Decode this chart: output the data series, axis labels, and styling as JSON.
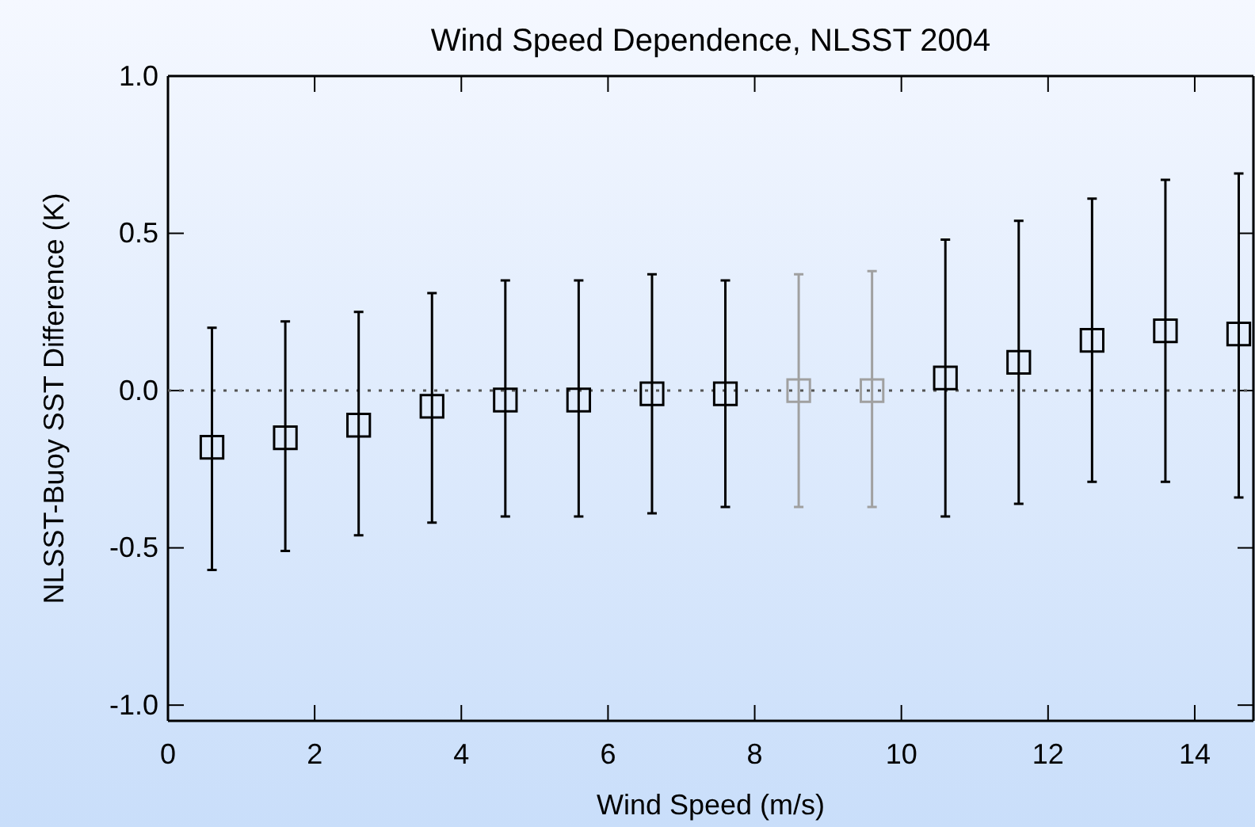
{
  "chart_data": {
    "type": "scatter",
    "title": "Wind Speed Dependence, NLSST 2004",
    "xlabel": "Wind Speed (m/s)",
    "ylabel": "NLSST-Buoy SST Difference (K)",
    "x": [
      0.6,
      1.6,
      2.6,
      3.6,
      4.6,
      5.6,
      6.6,
      7.6,
      8.6,
      9.6,
      10.6,
      11.6,
      12.6,
      13.6,
      14.6
    ],
    "values": [
      -0.18,
      -0.15,
      -0.11,
      -0.05,
      -0.03,
      -0.03,
      -0.01,
      -0.01,
      0.0,
      0.0,
      0.04,
      0.09,
      0.16,
      0.19,
      0.18
    ],
    "errors": [
      [
        -0.57,
        0.2
      ],
      [
        -0.51,
        0.22
      ],
      [
        -0.46,
        0.25
      ],
      [
        -0.42,
        0.31
      ],
      [
        -0.4,
        0.35
      ],
      [
        -0.4,
        0.35
      ],
      [
        -0.39,
        0.37
      ],
      [
        -0.37,
        0.35
      ],
      [
        -0.37,
        0.37
      ],
      [
        -0.37,
        0.38
      ],
      [
        -0.4,
        0.48
      ],
      [
        -0.36,
        0.54
      ],
      [
        -0.29,
        0.61
      ],
      [
        -0.29,
        0.67
      ],
      [
        -0.34,
        0.69
      ]
    ],
    "colors": [
      "#000000",
      "#000000",
      "#000000",
      "#000000",
      "#000000",
      "#000000",
      "#000000",
      "#000000",
      "#a0a0a0",
      "#a0a0a0",
      "#000000",
      "#000000",
      "#000000",
      "#000000",
      "#000000"
    ],
    "marker": "square",
    "xlim": [
      0,
      14.8
    ],
    "xticks": [
      0,
      2,
      4,
      6,
      8,
      10,
      12,
      14
    ],
    "ylim": [
      -1.05,
      1.0
    ],
    "yticks": [
      {
        "value": -1.0,
        "label": "-1.0"
      },
      {
        "value": -0.5,
        "label": "-0.5"
      },
      {
        "value": 0,
        "label": "0.0"
      },
      {
        "value": 0.5,
        "label": "0.5"
      },
      {
        "value": 1.0,
        "label": "1.0"
      }
    ],
    "ref_lines": [
      {
        "axis": "y",
        "value": 0,
        "label": null,
        "color": "#555555",
        "line_style": "dotted"
      }
    ],
    "grid": false
  }
}
